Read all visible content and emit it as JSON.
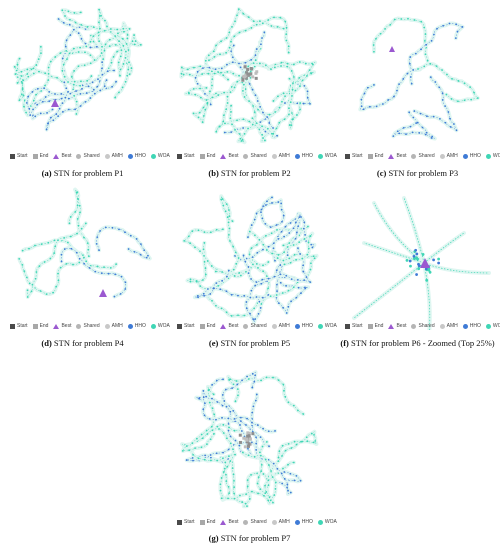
{
  "legend": [
    {
      "label": "Start",
      "shape": "square",
      "color": "#4a4a4a"
    },
    {
      "label": "End",
      "shape": "square",
      "color": "#a8a8a8"
    },
    {
      "label": "Best",
      "shape": "triangle",
      "color": "#9b59d0"
    },
    {
      "label": "Shared",
      "shape": "circle",
      "color": "#b5b5b5"
    },
    {
      "label": "AMH",
      "shape": "circle",
      "color": "#c8c8c8"
    },
    {
      "label": "HHO",
      "shape": "circle",
      "color": "#3f7bd6"
    },
    {
      "label": "WOA",
      "shape": "circle",
      "color": "#3fd6b5"
    }
  ],
  "panels": [
    {
      "letter": "(a)",
      "caption": " STN for problem P1",
      "kind": "circle",
      "focus": "best-lower-left"
    },
    {
      "letter": "(b)",
      "caption": " STN for problem P2",
      "kind": "circle",
      "focus": "cluster-center"
    },
    {
      "letter": "(c)",
      "caption": " STN for problem P3",
      "kind": "sparse",
      "focus": "best-upper-left"
    },
    {
      "letter": "(d)",
      "caption": " STN for problem P4",
      "kind": "sparse",
      "focus": "best-lower-center"
    },
    {
      "letter": "(e)",
      "caption": " STN for problem P5",
      "kind": "circle",
      "focus": "none"
    },
    {
      "letter": "(f)",
      "caption": " STN for problem P6 - Zoomed (Top 25%)",
      "kind": "star",
      "focus": "hub"
    },
    {
      "letter": "(g)",
      "caption": " STN for problem P7",
      "kind": "circle",
      "focus": "cluster-center"
    }
  ],
  "colors": {
    "hho": "#3f7bd6",
    "woa": "#3fd6b5",
    "halo": "#dff6f1",
    "best": "#9b59d0",
    "amh": "#bdbdbd"
  }
}
